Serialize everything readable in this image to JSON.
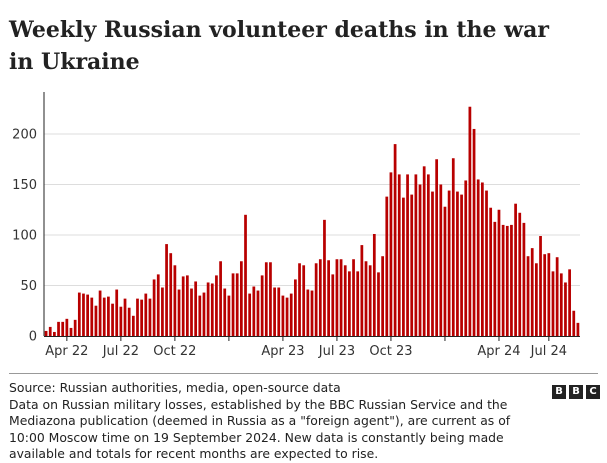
{
  "title": "Weekly Russian volunteer deaths in the war in Ukraine",
  "chart_data": {
    "type": "bar",
    "title": "Weekly Russian volunteer deaths in the war in Ukraine",
    "xlabel": "",
    "ylabel": "",
    "ylim": [
      0,
      240
    ],
    "yticks": [
      0,
      50,
      100,
      150,
      200
    ],
    "grid": true,
    "color": "#b80000",
    "xtick_labels": [
      {
        "label": "Apr 22",
        "index": 5
      },
      {
        "label": "Jul 22",
        "index": 18
      },
      {
        "label": "Oct 22",
        "index": 31
      },
      {
        "label": "Apr 23",
        "index": 57
      },
      {
        "label": "Jul 23",
        "index": 70
      },
      {
        "label": "Oct 23",
        "index": 83
      },
      {
        "label": "Apr 24",
        "index": 109
      },
      {
        "label": "Jul 24",
        "index": 121
      }
    ],
    "series": [
      {
        "name": "Weekly volunteer deaths",
        "values": [
          5,
          9,
          4,
          14,
          14,
          17,
          8,
          16,
          43,
          42,
          41,
          38,
          30,
          45,
          38,
          39,
          32,
          46,
          29,
          37,
          28,
          20,
          37,
          36,
          42,
          37,
          56,
          61,
          48,
          91,
          82,
          70,
          46,
          59,
          60,
          47,
          54,
          40,
          43,
          53,
          52,
          60,
          74,
          47,
          40,
          62,
          62,
          74,
          120,
          42,
          49,
          45,
          60,
          73,
          73,
          48,
          48,
          40,
          38,
          42,
          56,
          72,
          70,
          46,
          45,
          72,
          76,
          115,
          75,
          61,
          76,
          76,
          70,
          64,
          76,
          64,
          90,
          74,
          70,
          101,
          63,
          79,
          138,
          162,
          190,
          160,
          137,
          160,
          140,
          160,
          150,
          168,
          160,
          143,
          175,
          150,
          128,
          144,
          176,
          143,
          140,
          154,
          227,
          205,
          155,
          152,
          144,
          127,
          113,
          125,
          110,
          109,
          110,
          131,
          122,
          112,
          79,
          87,
          72,
          99,
          81,
          82,
          64,
          78,
          62,
          53,
          66,
          25,
          13
        ]
      }
    ]
  },
  "footer": {
    "source": "Source: Russian authorities, media, open-source data",
    "note": "Data on Russian military losses, established by the BBC Russian Service and the Mediazona publication (deemed in Russia as a \"foreign agent\"), are current as of 10:00 Moscow time on 19 September 2024. New data is constantly being made available and totals for recent months are expected to rise."
  },
  "logo": {
    "letters": [
      "B",
      "B",
      "C"
    ]
  }
}
